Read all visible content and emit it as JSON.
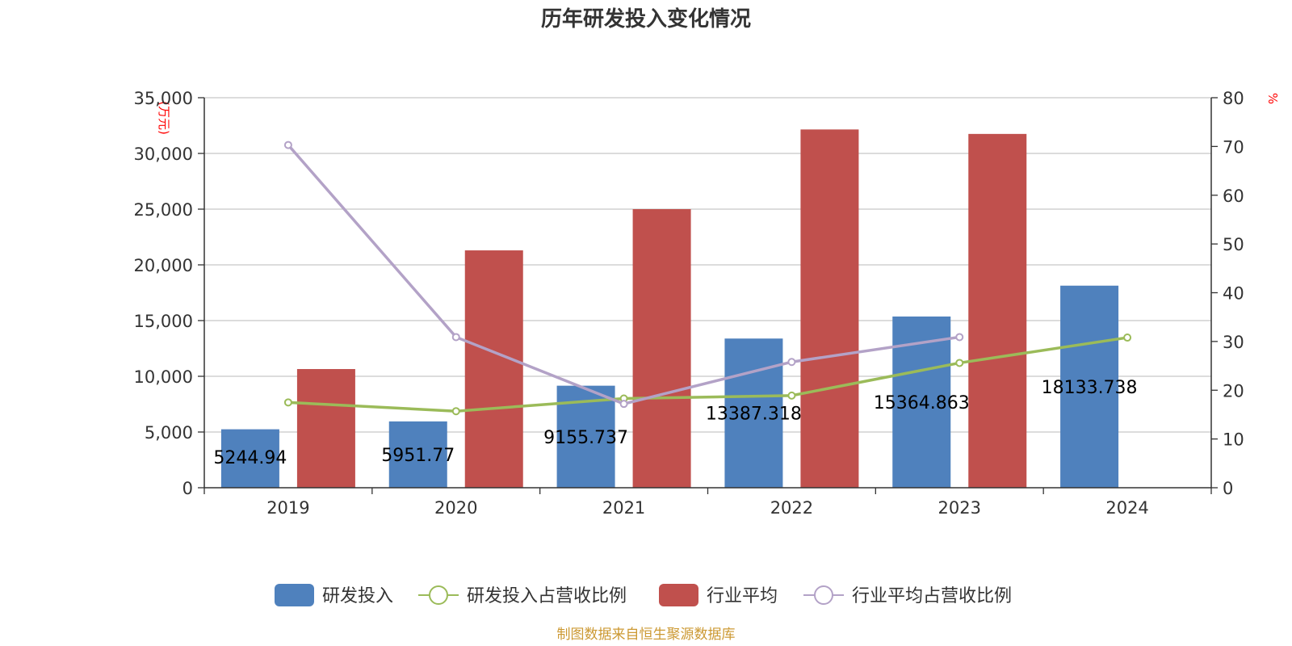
{
  "chart_data": {
    "type": "bar",
    "title": "历年研发投入变化情况",
    "categories": [
      "2019",
      "2020",
      "2021",
      "2022",
      "2023",
      "2024"
    ],
    "y_left": {
      "unit": "(万元)",
      "ylim": [
        0,
        35000
      ],
      "ticks": [
        "0",
        "5,000",
        "10,000",
        "15,000",
        "20,000",
        "25,000",
        "30,000",
        "35,000"
      ]
    },
    "y_right": {
      "unit": "%",
      "ylim": [
        0,
        80
      ],
      "ticks": [
        "0",
        "10",
        "20",
        "30",
        "40",
        "50",
        "60",
        "70",
        "80"
      ]
    },
    "series": [
      {
        "name": "研发投入",
        "kind": "bar",
        "axis": "left",
        "color": "#4f81bd",
        "values": [
          5244.94,
          5951.77,
          9155.737,
          13387.318,
          15364.863,
          18133.738
        ],
        "labels": [
          "5244.94",
          "5951.77",
          "9155.737",
          "13387.318",
          "15364.863",
          "18133.738"
        ]
      },
      {
        "name": "研发投入占营收比例",
        "kind": "line",
        "axis": "right",
        "color": "#9bbb59",
        "values": [
          17.5,
          15.7,
          18.3,
          18.9,
          25.6,
          30.8
        ]
      },
      {
        "name": "行业平均",
        "kind": "bar",
        "axis": "left",
        "color": "#c0504d",
        "values": [
          10650,
          21300,
          25000,
          32150,
          31750,
          null
        ]
      },
      {
        "name": "行业平均占营收比例",
        "kind": "line",
        "axis": "right",
        "color": "#b3a2c7",
        "values": [
          70.3,
          30.9,
          17.2,
          25.8,
          30.9,
          null
        ]
      }
    ],
    "grid": true,
    "legend_position": "bottom"
  },
  "footer": {
    "source": "制图数据来自恒生聚源数据库"
  }
}
